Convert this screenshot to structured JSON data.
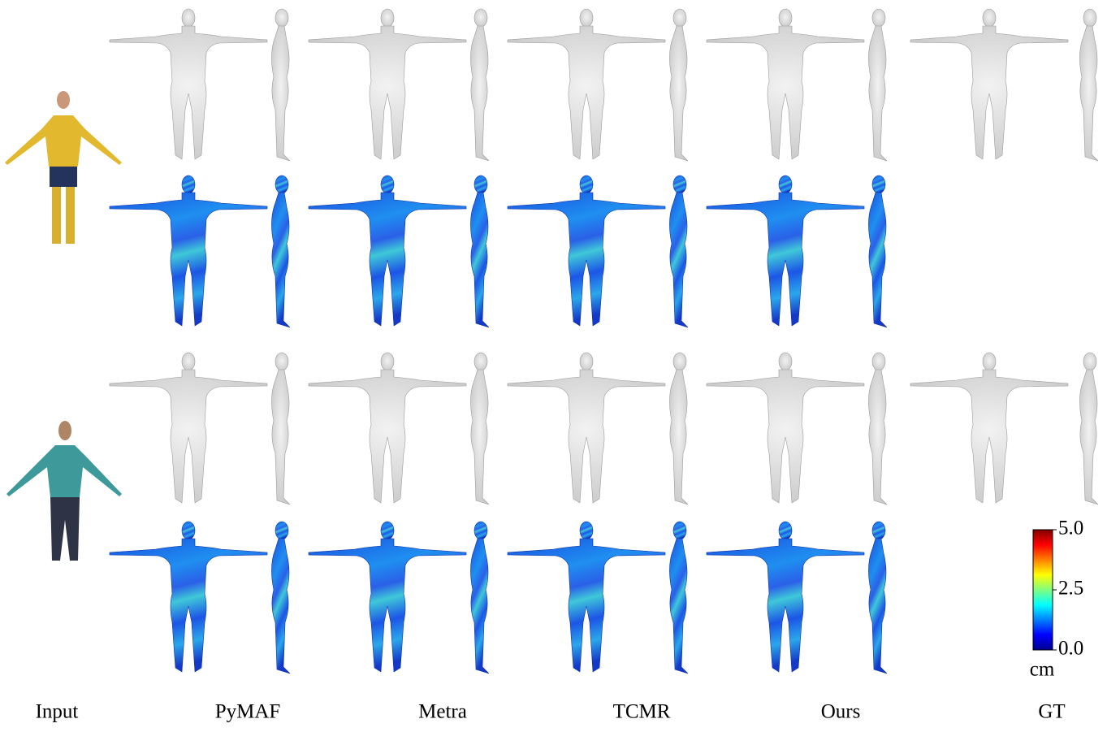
{
  "columns": [
    "Input",
    "PyMAF",
    "Metra",
    "TCMR",
    "Ours",
    "GT"
  ],
  "colorbar": {
    "range": [
      0,
      5
    ],
    "ticks": [
      {
        "value": 0,
        "label": "0.0"
      },
      {
        "value": 2.5,
        "label": "2.5"
      },
      {
        "value": 5,
        "label": "5.0"
      }
    ],
    "unit": "cm"
  }
}
